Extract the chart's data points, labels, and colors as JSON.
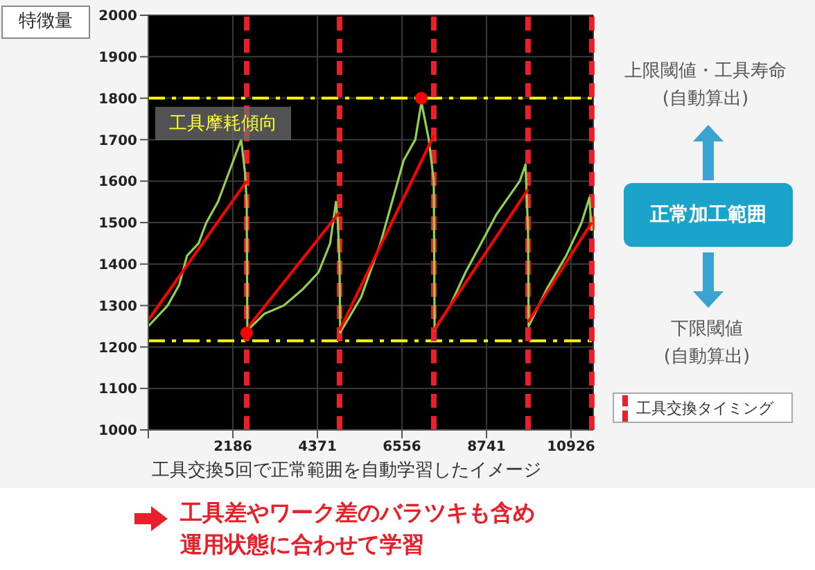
{
  "chart_data": {
    "type": "line",
    "ylabel": "特徴量",
    "xlabel": "工具交換5回で正常範囲を自動学習したイメージ",
    "xlim": [
      0,
      11500
    ],
    "xticks": [
      {
        "value": 0,
        "label": null
      },
      2186,
      4371,
      6556,
      8741,
      10926
    ],
    "ylim": [
      1000,
      2000
    ],
    "yticks": [
      1000,
      1100,
      1200,
      1300,
      1400,
      1500,
      1600,
      1700,
      1800,
      1900,
      2000
    ],
    "grid": true,
    "series": [
      {
        "color": "#92d050",
        "marker": "none",
        "x": [
          0,
          500,
          800,
          1000,
          1300,
          1500,
          1800,
          2000,
          2200,
          2400,
          2500,
          2543,
          2560,
          3000,
          3500,
          4000,
          4400,
          4700,
          4850,
          4900,
          4943,
          4960,
          5500,
          6000,
          6300,
          6600,
          6900,
          7060,
          7250,
          7379,
          7400,
          7800,
          8200,
          8600,
          9000,
          9300,
          9600,
          9750,
          9815,
          9830,
          10300,
          10800,
          11200,
          11400,
          11462
        ],
        "values": [
          1250,
          1300,
          1350,
          1420,
          1450,
          1500,
          1550,
          1600,
          1650,
          1700,
          1620,
          1550,
          1240,
          1280,
          1300,
          1340,
          1380,
          1450,
          1550,
          1500,
          1400,
          1235,
          1320,
          1450,
          1550,
          1650,
          1700,
          1790,
          1700,
          1600,
          1240,
          1300,
          1380,
          1450,
          1520,
          1560,
          1600,
          1640,
          1480,
          1250,
          1340,
          1420,
          1500,
          1560,
          1480
        ]
      },
      {
        "type": "line",
        "color": "#ff0000",
        "marker": "none",
        "x": [
          0,
          2543
        ],
        "values": [
          1265,
          1600
        ]
      },
      {
        "type": "line",
        "color": "#ff0000",
        "marker": "none",
        "x": [
          2600,
          4943
        ],
        "values": [
          1250,
          1525
        ]
      },
      {
        "type": "line",
        "color": "#ff0000",
        "marker": "none",
        "x": [
          4943,
          7379
        ],
        "values": [
          1240,
          1710
        ]
      },
      {
        "type": "line",
        "color": "#ff0000",
        "marker": "none",
        "x": [
          7379,
          9815
        ],
        "values": [
          1240,
          1580
        ]
      },
      {
        "type": "line",
        "color": "#ff0000",
        "marker": "none",
        "x": [
          9815,
          11462
        ],
        "values": [
          1260,
          1500
        ]
      },
      {
        "type": "scatter",
        "color": "#ff0000",
        "marker": "circle",
        "x": [
          2543,
          7056
        ],
        "values": [
          1234,
          1800
        ]
      }
    ],
    "ref_lines": [
      {
        "axis": "y",
        "value": 1800,
        "color": "#ffff00",
        "line_style": "dashed"
      },
      {
        "axis": "y",
        "value": 1215,
        "color": "#ffff00",
        "line_style": "dashed"
      },
      {
        "axis": "x",
        "value": 2543,
        "color": "#e8202a",
        "line_style": "dashed"
      },
      {
        "axis": "x",
        "value": 4943,
        "color": "#e8202a",
        "line_style": "dashed"
      },
      {
        "axis": "x",
        "value": 7379,
        "color": "#e8202a",
        "line_style": "dashed"
      },
      {
        "axis": "x",
        "value": 9815,
        "color": "#e8202a",
        "line_style": "dashed"
      },
      {
        "axis": "x",
        "value": 11462,
        "color": "#e8202a",
        "line_style": "dashed"
      }
    ],
    "annotations": [
      "工具摩耗傾向",
      "上限閾値・工具寿命",
      "(自動算出)",
      "正常加工範囲",
      "下限閾値",
      "(自動算出)",
      "工具差やワーク差のバラツキも含め",
      "運用状態に合わせて学習",
      "工具交換タイミング"
    ]
  }
}
